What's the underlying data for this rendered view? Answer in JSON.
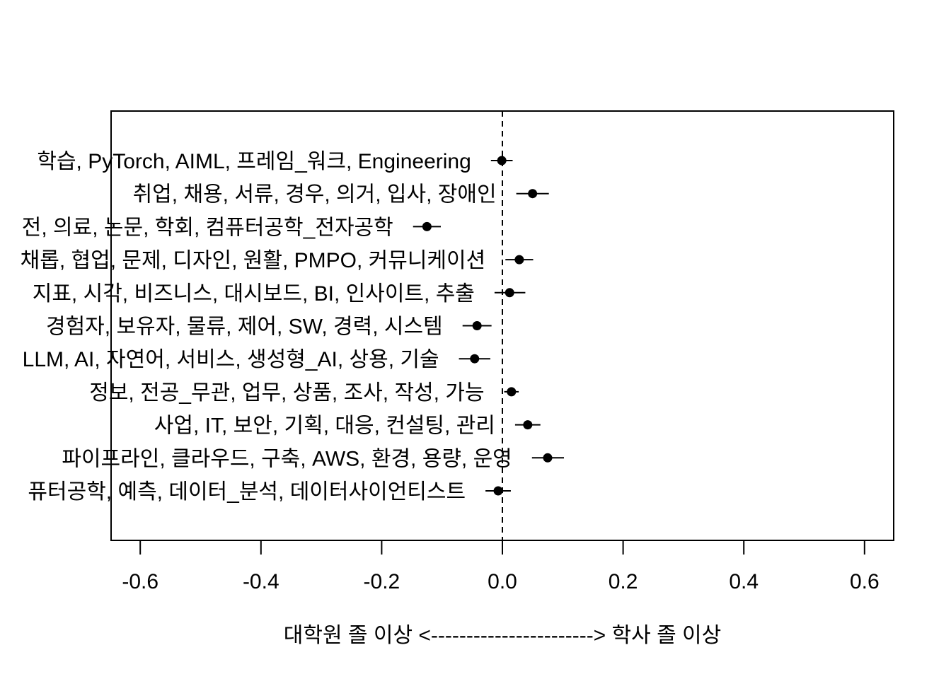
{
  "chart_data": {
    "type": "scatter",
    "subtype": "point-estimate-with-error-bars",
    "title": "",
    "xlabel": "대학원 졸 이상 <-----------------------> 학사 졸 이상",
    "ylabel": "",
    "xlim": [
      -0.64,
      0.64
    ],
    "xticks": [
      -0.6,
      -0.4,
      -0.2,
      0.0,
      0.2,
      0.4,
      0.6
    ],
    "xtick_labels": [
      "-0.6",
      "-0.4",
      "-0.2",
      "0.0",
      "0.2",
      "0.4",
      "0.6"
    ],
    "reference_line": {
      "x": 0.0,
      "style": "dashed"
    },
    "grid": false,
    "rows": [
      {
        "label": "학습, PyTorch, AIML, 프레임_워크, Engineering",
        "estimate": -0.001,
        "lower": -0.019,
        "upper": 0.017
      },
      {
        "label": "취업, 채용, 서류, 경우, 의거, 입사, 장애인",
        "estimate": 0.05,
        "lower": 0.023,
        "upper": 0.077
      },
      {
        "label": "전, 의료, 논문, 학회, 컴퓨터공학_전자공학",
        "estimate": -0.125,
        "lower": -0.148,
        "upper": -0.102
      },
      {
        "label": "채롭, 협업, 문제, 디자인, 원활, PMPO, 커뮤니케이션",
        "estimate": 0.028,
        "lower": 0.005,
        "upper": 0.051
      },
      {
        "label": "지표, 시각, 비즈니스, 대시보드, BI, 인사이트, 추출",
        "estimate": 0.012,
        "lower": -0.013,
        "upper": 0.038
      },
      {
        "label": "경험자, 보유자, 물류, 제어, SW, 경력, 시스템",
        "estimate": -0.042,
        "lower": -0.066,
        "upper": -0.018
      },
      {
        "label": "LLM, AI, 자연어, 서비스, 생성형_AI, 상용, 기술",
        "estimate": -0.046,
        "lower": -0.072,
        "upper": -0.02
      },
      {
        "label": "정보, 전공_무관, 업무, 상품, 조사, 작성, 가능",
        "estimate": 0.015,
        "lower": 0.003,
        "upper": 0.027
      },
      {
        "label": "사업, IT, 보안, 기획, 대응, 컨설팅, 관리",
        "estimate": 0.042,
        "lower": 0.021,
        "upper": 0.063
      },
      {
        "label": "파이프라인, 클라우드, 구축, AWS, 환경, 용량, 운영",
        "estimate": 0.075,
        "lower": 0.049,
        "upper": 0.102
      },
      {
        "label": "퓨터공학, 예측, 데이터_분석, 데이터사이언티스트",
        "estimate": -0.007,
        "lower": -0.028,
        "upper": 0.014
      }
    ]
  }
}
